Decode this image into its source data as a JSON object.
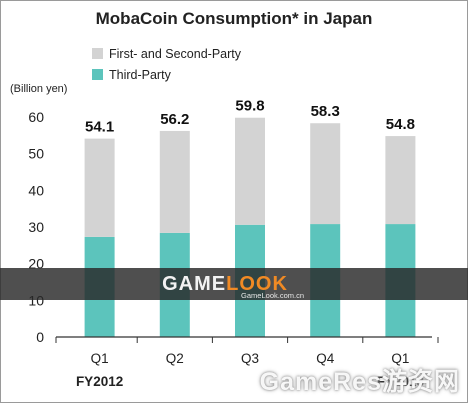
{
  "chart_data": {
    "type": "bar",
    "stacked": true,
    "title": "MobaCoin Consumption* in Japan",
    "unit_label": "(Billion yen)",
    "categories": [
      "Q1",
      "Q2",
      "Q3",
      "Q4",
      "Q1"
    ],
    "fiscal_years": [
      {
        "label": "FY2012",
        "category_index": 0
      },
      {
        "label": "FY2013",
        "category_index": 4
      }
    ],
    "series": [
      {
        "name": "Third-Party",
        "color": "#5cc4bc",
        "values": [
          27.3,
          28.4,
          30.6,
          30.8,
          30.8
        ]
      },
      {
        "name": "First- and Second-Party",
        "color": "#d3d3d3",
        "values": [
          26.8,
          27.8,
          29.2,
          27.5,
          24.0
        ]
      }
    ],
    "totals": [
      "54.1",
      "56.2",
      "59.8",
      "58.3",
      "54.8"
    ],
    "ylim": [
      0,
      60
    ],
    "yticks": [
      0,
      10,
      20,
      30,
      40,
      50,
      60
    ],
    "legend_position": "top-left",
    "grid": false
  },
  "watermark": {
    "logo_part1": "GAME",
    "logo_part2": "LOOK",
    "url": "GameLook.com.cn",
    "bottom_text": "GameRes游资网"
  }
}
